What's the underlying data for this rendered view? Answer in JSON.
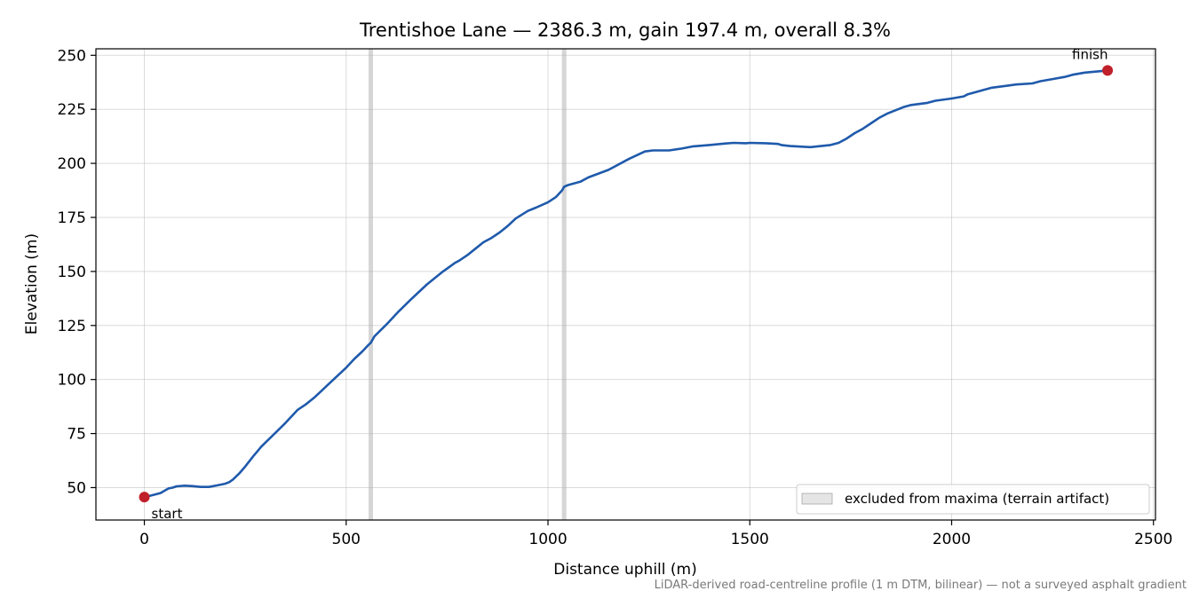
{
  "chart_data": {
    "type": "line",
    "title": "Trentishoe Lane — 2386.3 m, gain 197.4 m, overall 8.3%",
    "xlabel": "Distance uphill (m)",
    "ylabel": "Elevation (m)",
    "xlim": [
      -120,
      2505
    ],
    "ylim": [
      35,
      253
    ],
    "xticks": [
      0,
      500,
      1000,
      1500,
      2000,
      2500
    ],
    "yticks": [
      50,
      75,
      100,
      125,
      150,
      175,
      200,
      225,
      250
    ],
    "grid": true,
    "legend": {
      "placement": "lower-right",
      "label": "excluded from maxima (terrain artifact)"
    },
    "excluded_x": [
      561,
      1040
    ],
    "markers": [
      {
        "label": "start",
        "x": 0,
        "y": 45.6
      },
      {
        "label": "finish",
        "x": 2386.3,
        "y": 243.0
      }
    ],
    "series": [
      {
        "color": "#1f5aab",
        "x": [
          0,
          20,
          40,
          60,
          70,
          80,
          100,
          120,
          140,
          160,
          180,
          200,
          210,
          220,
          235,
          250,
          270,
          290,
          320,
          350,
          380,
          400,
          410,
          420,
          440,
          460,
          480,
          500,
          520,
          540,
          555,
          561,
          570,
          600,
          630,
          660,
          700,
          740,
          770,
          780,
          800,
          820,
          840,
          860,
          880,
          900,
          920,
          950,
          970,
          1000,
          1020,
          1035,
          1040,
          1050,
          1080,
          1100,
          1150,
          1200,
          1240,
          1260,
          1300,
          1330,
          1360,
          1400,
          1440,
          1460,
          1490,
          1500,
          1540,
          1570,
          1580,
          1600,
          1650,
          1700,
          1720,
          1740,
          1760,
          1780,
          1800,
          1820,
          1840,
          1860,
          1880,
          1900,
          1940,
          1960,
          2000,
          2030,
          2040,
          2060,
          2080,
          2100,
          2140,
          2160,
          2200,
          2220,
          2250,
          2280,
          2300,
          2330,
          2360,
          2386.3
        ],
        "y": [
          45.6,
          46.5,
          47.5,
          49.6,
          50.0,
          50.6,
          50.9,
          50.7,
          50.3,
          50.3,
          51.0,
          51.8,
          52.5,
          53.8,
          56.5,
          59.8,
          64.5,
          69.0,
          74.5,
          80.0,
          86.0,
          88.5,
          90.0,
          91.5,
          95.0,
          98.5,
          102.0,
          105.5,
          109.5,
          113.0,
          116.0,
          117.0,
          120.0,
          125.5,
          131.5,
          137.0,
          144.0,
          150.0,
          154.0,
          155.0,
          157.5,
          160.5,
          163.5,
          165.5,
          168.0,
          171.0,
          174.5,
          178.0,
          179.5,
          182.0,
          184.5,
          187.5,
          189.2,
          190.0,
          191.5,
          193.5,
          197.0,
          202.0,
          205.5,
          206.0,
          206.0,
          206.8,
          207.9,
          208.5,
          209.2,
          209.5,
          209.3,
          209.5,
          209.3,
          209.0,
          208.4,
          208.0,
          207.5,
          208.5,
          209.5,
          211.5,
          214.0,
          216.0,
          218.5,
          221.0,
          223.0,
          224.5,
          226.0,
          227.0,
          228.0,
          229.0,
          230.0,
          231.0,
          232.0,
          233.0,
          234.0,
          235.0,
          236.0,
          236.5,
          237.0,
          238.0,
          239.0,
          240.0,
          241.0,
          242.0,
          242.5,
          243.0
        ]
      }
    ]
  },
  "footnote": "LiDAR-derived road-centreline profile (1 m DTM, bilinear) — not a surveyed asphalt gradient"
}
